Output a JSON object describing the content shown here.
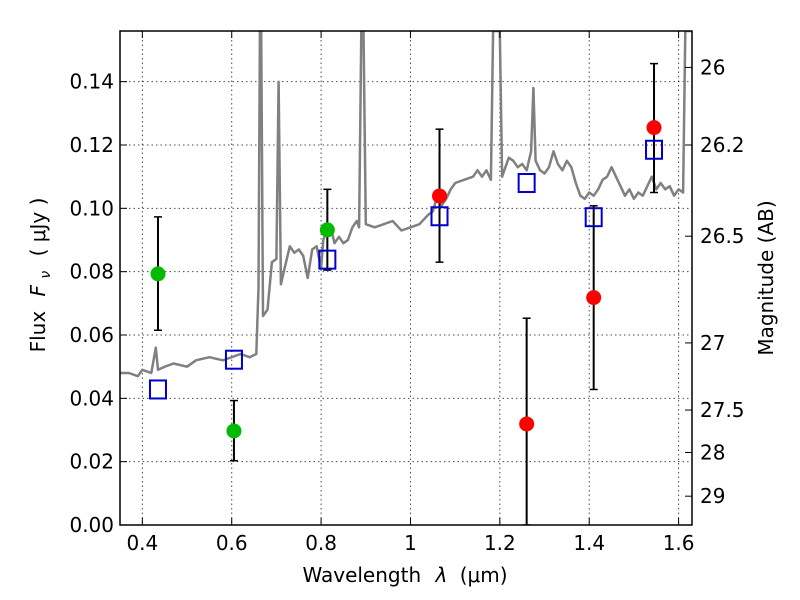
{
  "chart_data": {
    "type": "scatter",
    "title": "",
    "xlabel_text": "Wavelength",
    "xlabel_symbol": "λ",
    "xlabel_unit": "(μm)",
    "ylabel_text": "Flux",
    "ylabel_symbol": "F",
    "ylabel_subscript": "ν",
    "ylabel_unit": "( μJy )",
    "y2label": "Magnitude (AB)",
    "xlim": [
      0.35,
      1.63
    ],
    "ylim": [
      0.0,
      0.156
    ],
    "xticks": [
      0.4,
      0.6,
      0.8,
      1.0,
      1.2,
      1.4,
      1.6
    ],
    "xtick_labels": [
      "0.4",
      "0.6",
      "0.8",
      "1",
      "1.2",
      "1.4",
      "1.6"
    ],
    "yticks": [
      0.0,
      0.02,
      0.04,
      0.06,
      0.08,
      0.1,
      0.12,
      0.14
    ],
    "ytick_labels": [
      "0.00",
      "0.02",
      "0.04",
      "0.06",
      "0.08",
      "0.10",
      "0.12",
      "0.14"
    ],
    "mag_ticks": [
      {
        "flux": 0.1445,
        "label": "26"
      },
      {
        "flux": 0.12,
        "label": "26.2"
      },
      {
        "flux": 0.0912,
        "label": "26.5"
      },
      {
        "flux": 0.0575,
        "label": "27"
      },
      {
        "flux": 0.0363,
        "label": "27.5"
      },
      {
        "flux": 0.0229,
        "label": "28"
      },
      {
        "flux": 0.0091,
        "label": "29"
      }
    ],
    "grid": true,
    "colors": {
      "spectrum": "#808080",
      "green": "#00bb00",
      "red": "#ff0000",
      "model": "#0000cc",
      "errorbar": "#000000"
    },
    "series": [
      {
        "name": "spectrum",
        "type": "line",
        "points": [
          [
            0.35,
            0.048
          ],
          [
            0.37,
            0.048
          ],
          [
            0.39,
            0.047
          ],
          [
            0.4,
            0.049
          ],
          [
            0.42,
            0.048
          ],
          [
            0.43,
            0.056
          ],
          [
            0.435,
            0.049
          ],
          [
            0.45,
            0.05
          ],
          [
            0.47,
            0.051
          ],
          [
            0.5,
            0.05
          ],
          [
            0.52,
            0.052
          ],
          [
            0.55,
            0.053
          ],
          [
            0.58,
            0.052
          ],
          [
            0.6,
            0.053
          ],
          [
            0.62,
            0.054
          ],
          [
            0.64,
            0.053
          ],
          [
            0.655,
            0.054
          ],
          [
            0.66,
            0.075
          ],
          [
            0.663,
            0.156
          ],
          [
            0.666,
            0.156
          ],
          [
            0.67,
            0.066
          ],
          [
            0.68,
            0.068
          ],
          [
            0.69,
            0.083
          ],
          [
            0.7,
            0.084
          ],
          [
            0.705,
            0.14
          ],
          [
            0.71,
            0.076
          ],
          [
            0.72,
            0.082
          ],
          [
            0.73,
            0.088
          ],
          [
            0.74,
            0.086
          ],
          [
            0.75,
            0.087
          ],
          [
            0.76,
            0.085
          ],
          [
            0.77,
            0.078
          ],
          [
            0.78,
            0.087
          ],
          [
            0.79,
            0.088
          ],
          [
            0.8,
            0.081
          ],
          [
            0.805,
            0.09
          ],
          [
            0.81,
            0.092
          ],
          [
            0.82,
            0.095
          ],
          [
            0.83,
            0.089
          ],
          [
            0.84,
            0.091
          ],
          [
            0.85,
            0.089
          ],
          [
            0.86,
            0.09
          ],
          [
            0.87,
            0.094
          ],
          [
            0.88,
            0.096
          ],
          [
            0.885,
            0.094
          ],
          [
            0.89,
            0.156
          ],
          [
            0.895,
            0.156
          ],
          [
            0.9,
            0.095
          ],
          [
            0.92,
            0.094
          ],
          [
            0.94,
            0.095
          ],
          [
            0.96,
            0.096
          ],
          [
            0.98,
            0.093
          ],
          [
            1.0,
            0.094
          ],
          [
            1.02,
            0.095
          ],
          [
            1.04,
            0.098
          ],
          [
            1.05,
            0.099
          ],
          [
            1.06,
            0.104
          ],
          [
            1.07,
            0.101
          ],
          [
            1.08,
            0.103
          ],
          [
            1.09,
            0.106
          ],
          [
            1.1,
            0.108
          ],
          [
            1.12,
            0.109
          ],
          [
            1.14,
            0.11
          ],
          [
            1.15,
            0.112
          ],
          [
            1.16,
            0.11
          ],
          [
            1.17,
            0.112
          ],
          [
            1.18,
            0.109
          ],
          [
            1.185,
            0.156
          ],
          [
            1.19,
            0.156
          ],
          [
            1.2,
            0.156
          ],
          [
            1.205,
            0.11
          ],
          [
            1.21,
            0.112
          ],
          [
            1.22,
            0.116
          ],
          [
            1.23,
            0.115
          ],
          [
            1.24,
            0.113
          ],
          [
            1.25,
            0.114
          ],
          [
            1.26,
            0.112
          ],
          [
            1.27,
            0.118
          ],
          [
            1.275,
            0.138
          ],
          [
            1.28,
            0.115
          ],
          [
            1.29,
            0.112
          ],
          [
            1.3,
            0.111
          ],
          [
            1.31,
            0.113
          ],
          [
            1.32,
            0.118
          ],
          [
            1.33,
            0.114
          ],
          [
            1.34,
            0.112
          ],
          [
            1.35,
            0.115
          ],
          [
            1.36,
            0.113
          ],
          [
            1.37,
            0.108
          ],
          [
            1.38,
            0.104
          ],
          [
            1.39,
            0.103
          ],
          [
            1.4,
            0.105
          ],
          [
            1.41,
            0.104
          ],
          [
            1.42,
            0.106
          ],
          [
            1.43,
            0.109
          ],
          [
            1.44,
            0.11
          ],
          [
            1.45,
            0.113
          ],
          [
            1.46,
            0.11
          ],
          [
            1.47,
            0.107
          ],
          [
            1.48,
            0.104
          ],
          [
            1.49,
            0.106
          ],
          [
            1.5,
            0.103
          ],
          [
            1.51,
            0.105
          ],
          [
            1.52,
            0.104
          ],
          [
            1.53,
            0.107
          ],
          [
            1.54,
            0.11
          ],
          [
            1.55,
            0.106
          ],
          [
            1.56,
            0.108
          ],
          [
            1.57,
            0.106
          ],
          [
            1.58,
            0.107
          ],
          [
            1.59,
            0.104
          ],
          [
            1.6,
            0.106
          ],
          [
            1.61,
            0.105
          ],
          [
            1.615,
            0.156
          ],
          [
            1.62,
            0.156
          ],
          [
            1.63,
            0.156
          ]
        ]
      },
      {
        "name": "green",
        "type": "errorbar",
        "points": [
          {
            "x": 0.435,
            "y": 0.0793,
            "lo": 0.0615,
            "hi": 0.0973
          },
          {
            "x": 0.605,
            "y": 0.0297,
            "lo": 0.0203,
            "hi": 0.0393
          },
          {
            "x": 0.814,
            "y": 0.0932,
            "lo": 0.0805,
            "hi": 0.106
          }
        ]
      },
      {
        "name": "red",
        "type": "errorbar",
        "points": [
          {
            "x": 1.065,
            "y": 0.1039,
            "lo": 0.083,
            "hi": 0.125
          },
          {
            "x": 1.26,
            "y": 0.0319,
            "lo": 0.0,
            "hi": 0.0653
          },
          {
            "x": 1.41,
            "y": 0.0718,
            "lo": 0.0428,
            "hi": 0.1008
          },
          {
            "x": 1.545,
            "y": 0.1255,
            "lo": 0.105,
            "hi": 0.1457
          }
        ]
      },
      {
        "name": "model",
        "type": "scatter",
        "marker": "open-square",
        "points": [
          {
            "x": 0.435,
            "y": 0.0428
          },
          {
            "x": 0.605,
            "y": 0.0522
          },
          {
            "x": 0.814,
            "y": 0.0838
          },
          {
            "x": 1.065,
            "y": 0.0975
          },
          {
            "x": 1.26,
            "y": 0.108
          },
          {
            "x": 1.41,
            "y": 0.0972
          },
          {
            "x": 1.545,
            "y": 0.1185
          }
        ]
      }
    ]
  }
}
